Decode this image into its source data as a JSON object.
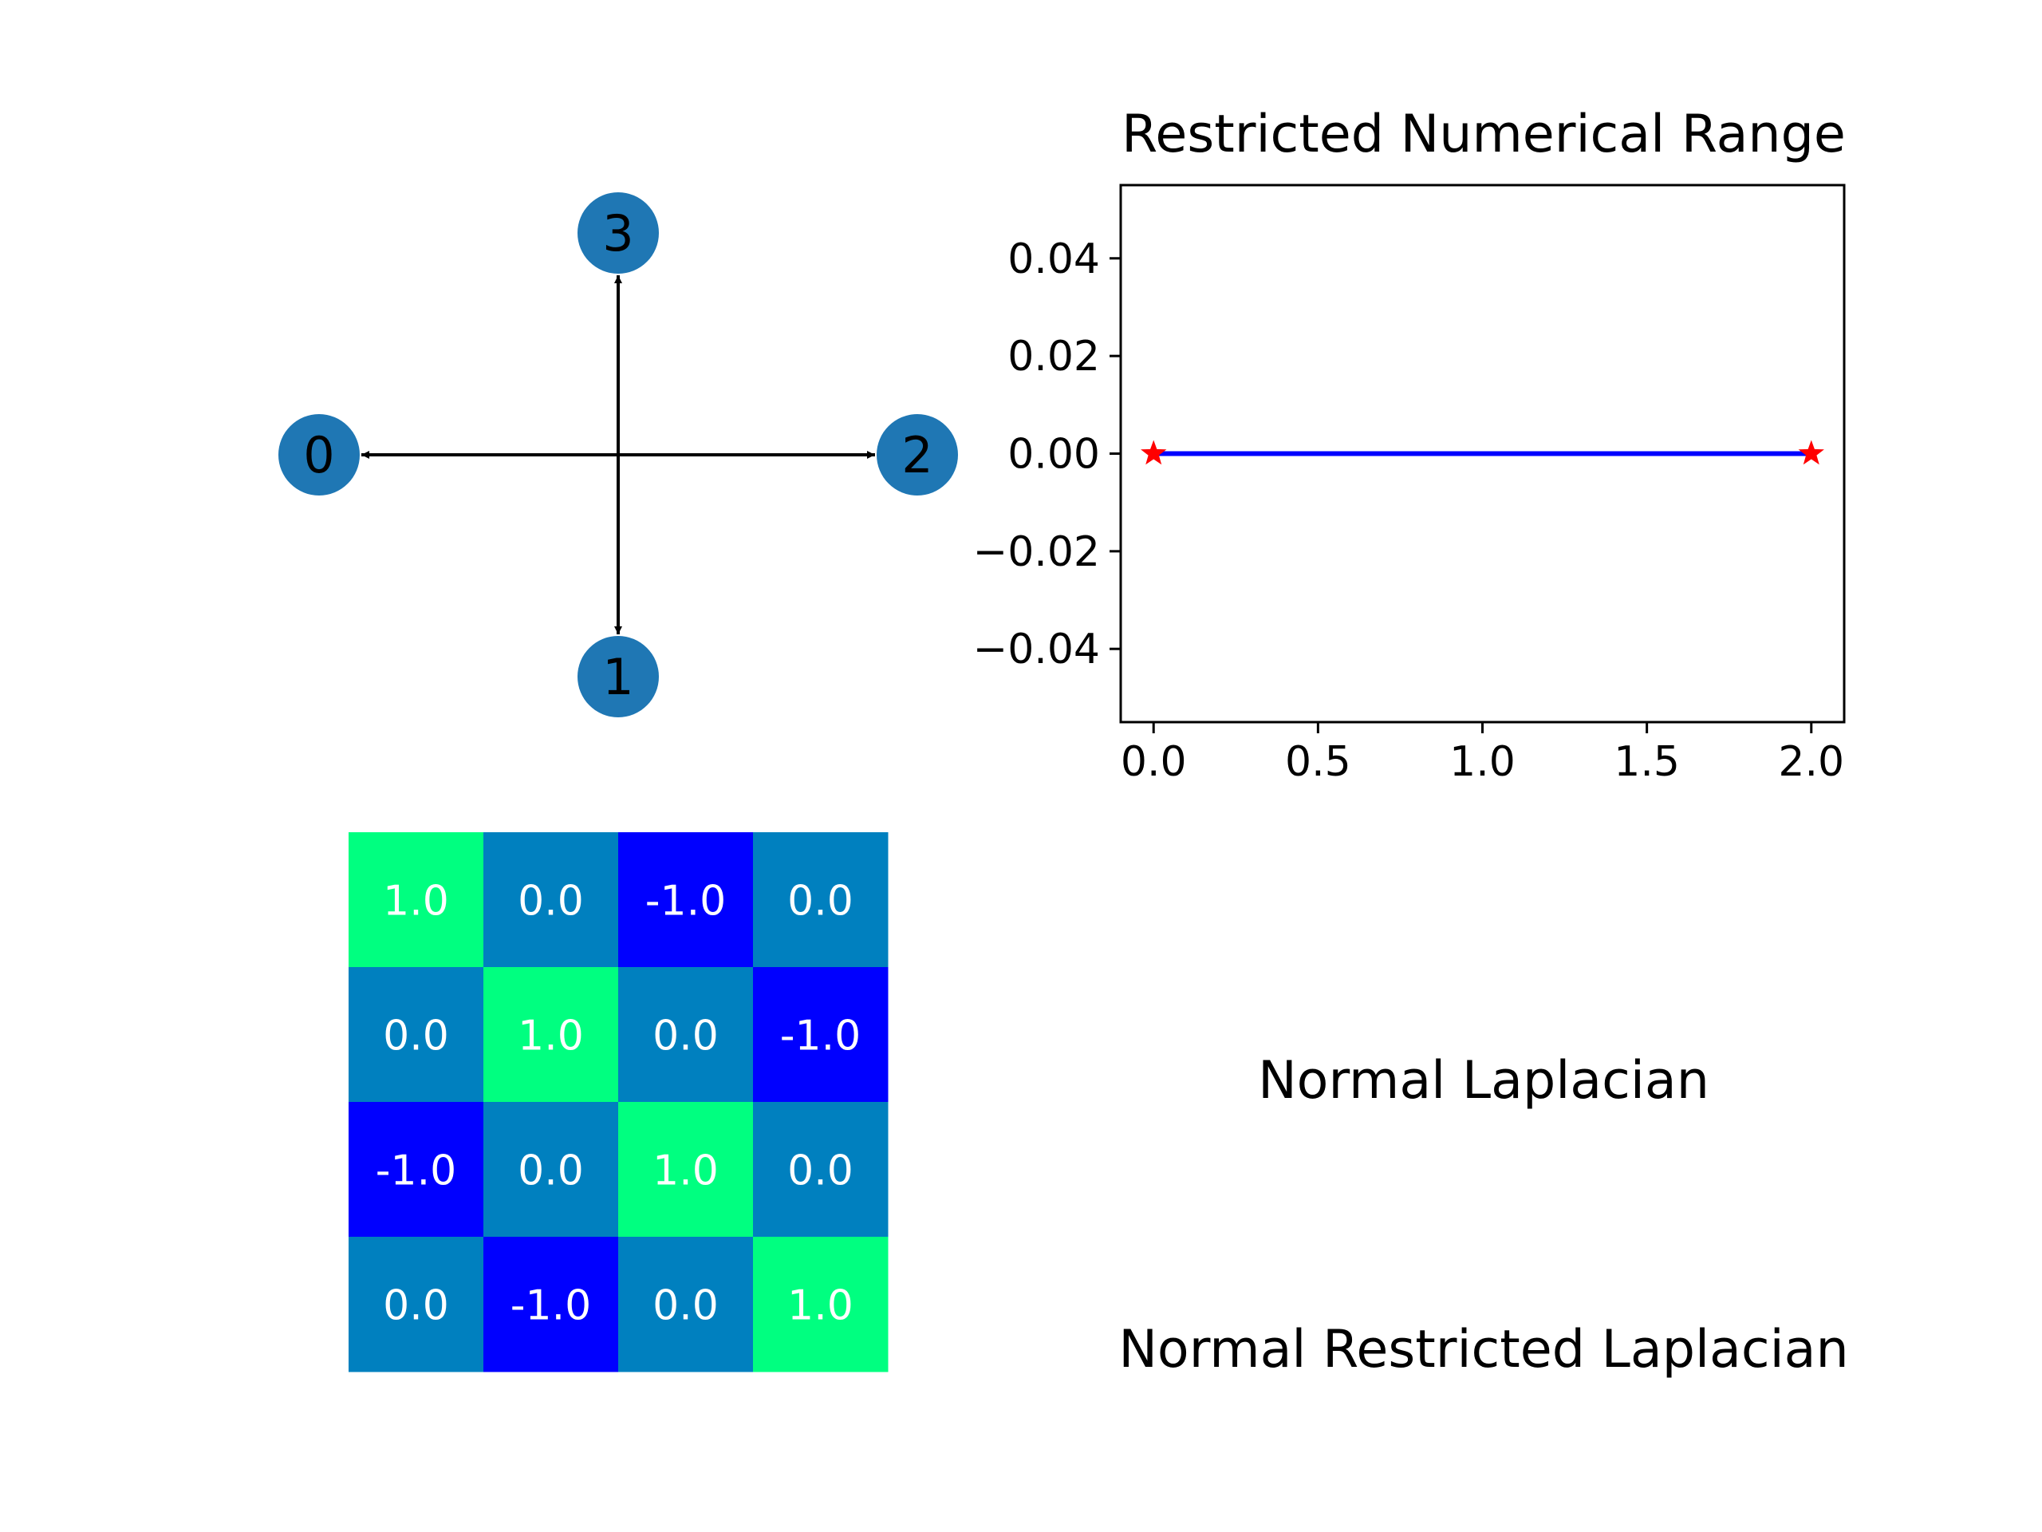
{
  "graph": {
    "nodes": [
      {
        "id": "0",
        "label": "0"
      },
      {
        "id": "1",
        "label": "1"
      },
      {
        "id": "2",
        "label": "2"
      },
      {
        "id": "3",
        "label": "3"
      }
    ],
    "edges": [
      {
        "from": "center",
        "to": "0"
      },
      {
        "from": "center",
        "to": "1"
      },
      {
        "from": "center",
        "to": "2"
      },
      {
        "from": "center",
        "to": "3"
      }
    ],
    "node_color": "#1f77b4",
    "edge_color": "#000000"
  },
  "chart_data": [
    {
      "type": "line",
      "title": "Restricted Numerical Range",
      "xlabel": "",
      "ylabel": "",
      "xlim": [
        -0.1,
        2.1
      ],
      "ylim": [
        -0.055,
        0.055
      ],
      "xticks": [
        0.0,
        0.5,
        1.0,
        1.5,
        2.0
      ],
      "xtick_labels": [
        "0.0",
        "0.5",
        "1.0",
        "1.5",
        "2.0"
      ],
      "yticks": [
        0.04,
        0.02,
        0.0,
        -0.02,
        -0.04
      ],
      "ytick_labels": [
        "0.04",
        "0.02",
        "0.00",
        "−0.02",
        "−0.04"
      ],
      "grid": false,
      "series": [
        {
          "style": "line",
          "color": "#0000ff",
          "x": [
            0.0,
            2.0
          ],
          "y": [
            0.0,
            0.0
          ]
        },
        {
          "style": "markers",
          "marker": "star",
          "color": "#ff0000",
          "x": [
            0.0,
            2.0
          ],
          "y": [
            0.0,
            0.0
          ]
        }
      ]
    },
    {
      "type": "heatmap",
      "title": "",
      "colormap": "winter",
      "color_low": "#0000ff",
      "color_mid": "#0080bf",
      "color_high": "#00ff80",
      "annotation_color": "#ffffff",
      "values": [
        [
          1.0,
          0.0,
          -1.0,
          0.0
        ],
        [
          0.0,
          1.0,
          0.0,
          -1.0
        ],
        [
          -1.0,
          0.0,
          1.0,
          0.0
        ],
        [
          0.0,
          -1.0,
          0.0,
          1.0
        ]
      ],
      "labels": [
        [
          "1.0",
          "0.0",
          "-1.0",
          "0.0"
        ],
        [
          "0.0",
          "1.0",
          "0.0",
          "-1.0"
        ],
        [
          "-1.0",
          "0.0",
          "1.0",
          "0.0"
        ],
        [
          "0.0",
          "-1.0",
          "0.0",
          "1.0"
        ]
      ]
    }
  ],
  "text_panel": {
    "line1": "Normal Laplacian",
    "line2": "Normal Restricted Laplacian"
  }
}
